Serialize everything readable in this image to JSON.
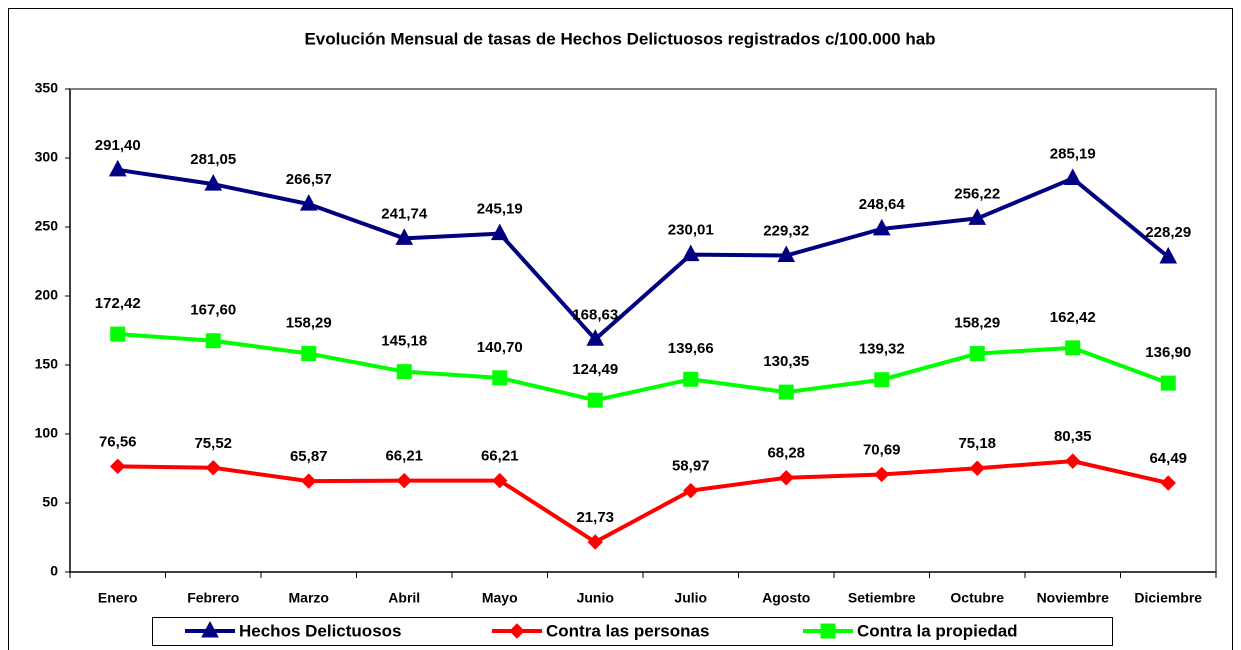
{
  "chart_data": {
    "type": "line",
    "title": "Evolución Mensual de tasas de Hechos Delictuosos registrados c/100.000 hab",
    "categories": [
      "Enero",
      "Febrero",
      "Marzo",
      "Abril",
      "Mayo",
      "Junio",
      "Julio",
      "Agosto",
      "Setiembre",
      "Octubre",
      "Noviembre",
      "Diciembre"
    ],
    "series": [
      {
        "name": "Hechos Delictuosos",
        "color": "#000080",
        "marker": "triangle",
        "values": [
          291.4,
          281.05,
          266.57,
          241.74,
          245.19,
          168.63,
          230.01,
          229.32,
          248.64,
          256.22,
          285.19,
          228.29
        ],
        "value_labels": [
          "291,40",
          "281,05",
          "266,57",
          "241,74",
          "245,19",
          "168,63",
          "230,01",
          "229,32",
          "248,64",
          "256,22",
          "285,19",
          "228,29"
        ]
      },
      {
        "name": "Contra las personas",
        "color": "#ff0000",
        "marker": "diamond",
        "values": [
          76.56,
          75.52,
          65.87,
          66.21,
          66.21,
          21.73,
          58.97,
          68.28,
          70.69,
          75.18,
          80.35,
          64.49
        ],
        "value_labels": [
          "76,56",
          "75,52",
          "65,87",
          "66,21",
          "66,21",
          "21,73",
          "58,97",
          "68,28",
          "70,69",
          "75,18",
          "80,35",
          "64,49"
        ]
      },
      {
        "name": "Contra la propiedad",
        "color": "#00ff00",
        "marker": "square",
        "values": [
          172.42,
          167.6,
          158.29,
          145.18,
          140.7,
          124.49,
          139.66,
          130.35,
          139.32,
          158.29,
          162.42,
          136.9
        ],
        "value_labels": [
          "172,42",
          "167,60",
          "158,29",
          "145,18",
          "140,70",
          "124,49",
          "139,66",
          "130,35",
          "139,32",
          "158,29",
          "162,42",
          "136,90"
        ]
      }
    ],
    "ylim": [
      0,
      350
    ],
    "yticks": [
      0,
      50,
      100,
      150,
      200,
      250,
      300,
      350
    ],
    "grid": false,
    "legend": "bottom"
  }
}
